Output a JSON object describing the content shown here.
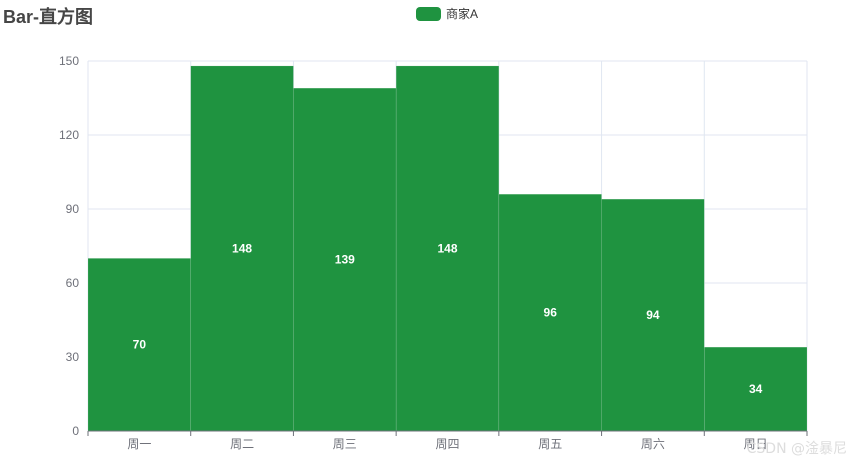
{
  "chart_data": {
    "type": "bar",
    "title": "Bar-直方图",
    "categories": [
      "周一",
      "周二",
      "周三",
      "周四",
      "周五",
      "周六",
      "周日"
    ],
    "series": [
      {
        "name": "商家A",
        "values": [
          70,
          148,
          139,
          148,
          96,
          94,
          34
        ],
        "color": "#1f9340"
      }
    ],
    "ylim": [
      0,
      150
    ],
    "yticks": [
      0,
      30,
      60,
      90,
      120,
      150
    ],
    "grid": true,
    "legend": "top-center",
    "data_labels": true
  },
  "watermark": "CSDN @淦暴尼"
}
